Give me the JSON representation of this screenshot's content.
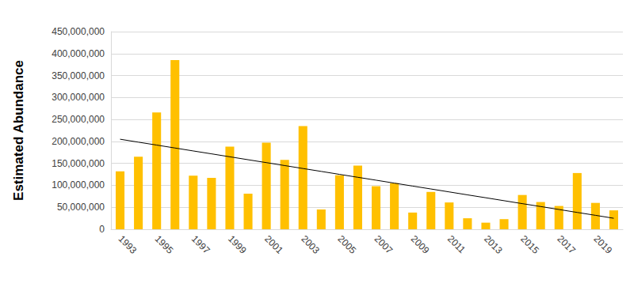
{
  "chart_data": {
    "type": "bar",
    "y_label": "Estimated Abundance",
    "categories": [
      "1993",
      null,
      "1995",
      null,
      "1997",
      null,
      "1999",
      null,
      "2001",
      null,
      "2003",
      null,
      "2005",
      null,
      "2007",
      null,
      "2009",
      null,
      "2011",
      null,
      "2013",
      null,
      "2015",
      null,
      "2017",
      null,
      "2019",
      null
    ],
    "series": [
      {
        "type": "bar",
        "color": "#ffc000",
        "values": [
          132000000,
          165000000,
          266000000,
          385000000,
          122000000,
          117000000,
          188000000,
          81000000,
          197000000,
          158000000,
          235000000,
          45000000,
          123000000,
          145000000,
          98000000,
          105000000,
          38000000,
          85000000,
          61000000,
          25000000,
          15000000,
          23000000,
          78000000,
          62000000,
          53000000,
          128000000,
          60000000,
          43000000
        ]
      },
      {
        "type": "line",
        "color": "#000000",
        "marker": "none",
        "values": [
          205000000,
          198300000,
          191700000,
          185000000,
          178300000,
          171700000,
          165000000,
          158300000,
          151700000,
          145000000,
          138300000,
          131700000,
          125000000,
          118300000,
          111700000,
          105000000,
          98300000,
          91700000,
          85000000,
          78300000,
          71700000,
          65000000,
          58300000,
          51700000,
          45000000,
          38300000,
          31700000,
          25000000
        ]
      }
    ],
    "ylim": [
      0,
      450000000
    ],
    "yticks": [
      {
        "value": 0,
        "label": "0"
      },
      {
        "value": 50000000,
        "label": "50,000,000"
      },
      {
        "value": 100000000,
        "label": "100,000,000"
      },
      {
        "value": 150000000,
        "label": "150,000,000"
      },
      {
        "value": 200000000,
        "label": "200,000,000"
      },
      {
        "value": 250000000,
        "label": "250,000,000"
      },
      {
        "value": 300000000,
        "label": "300,000,000"
      },
      {
        "value": 350000000,
        "label": "350,000,000"
      },
      {
        "value": 400000000,
        "label": "400,000,000"
      },
      {
        "value": 450000000,
        "label": "450,000,000"
      }
    ],
    "grid": true
  }
}
